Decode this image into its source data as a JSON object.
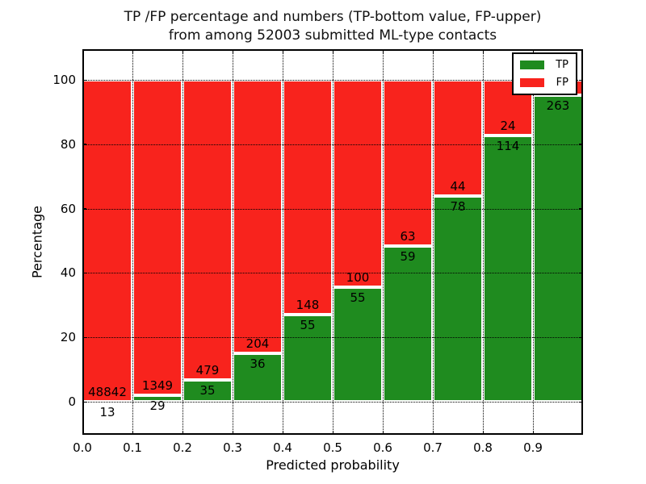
{
  "title": {
    "line1": "TP /FP percentage and numbers (TP-bottom value, FP-upper)",
    "line2": "from among 52003 submitted ML-type contacts"
  },
  "axes": {
    "xlabel": "Predicted probability",
    "ylabel": "Percentage",
    "xtick_labels": [
      "0.0",
      "0.1",
      "0.2",
      "0.3",
      "0.4",
      "0.5",
      "0.6",
      "0.7",
      "0.8",
      "0.9"
    ],
    "ytick_labels": [
      "0",
      "20",
      "40",
      "60",
      "80",
      "100"
    ]
  },
  "legend": {
    "items": [
      {
        "label": "TP",
        "color": "#1f8b1f"
      },
      {
        "label": "FP",
        "color": "#f8231d"
      }
    ]
  },
  "chart_data": {
    "type": "bar",
    "stacked": true,
    "title": "TP /FP percentage and numbers (TP-bottom value, FP-upper) from among 52003 submitted ML-type contacts",
    "xlabel": "Predicted probability",
    "ylabel": "Percentage",
    "total_submitted": 52003,
    "bin_edges": [
      0.0,
      0.1,
      0.2,
      0.3,
      0.4,
      0.5,
      0.6,
      0.7,
      0.8,
      0.9,
      1.0
    ],
    "xticks": [
      0.0,
      0.1,
      0.2,
      0.3,
      0.4,
      0.5,
      0.6,
      0.7,
      0.8,
      0.9
    ],
    "yticks": [
      0,
      20,
      40,
      60,
      80,
      100
    ],
    "xlim": [
      0.0,
      1.0
    ],
    "ylim": [
      -10.5,
      109.5
    ],
    "grid": true,
    "legend_position": "upper right",
    "series": [
      {
        "name": "TP",
        "color": "#1f8b1f",
        "counts": [
          13,
          29,
          35,
          36,
          55,
          55,
          59,
          78,
          114,
          263
        ],
        "percent": [
          0.03,
          2.1,
          6.8,
          15.0,
          27.1,
          35.5,
          48.4,
          63.9,
          82.6,
          95.3
        ]
      },
      {
        "name": "FP",
        "color": "#f8231d",
        "counts": [
          48842,
          1349,
          479,
          204,
          148,
          100,
          63,
          44,
          24,
          null
        ],
        "percent": [
          99.97,
          97.9,
          93.2,
          85.0,
          72.9,
          64.5,
          51.6,
          36.1,
          17.4,
          4.7
        ]
      }
    ]
  }
}
